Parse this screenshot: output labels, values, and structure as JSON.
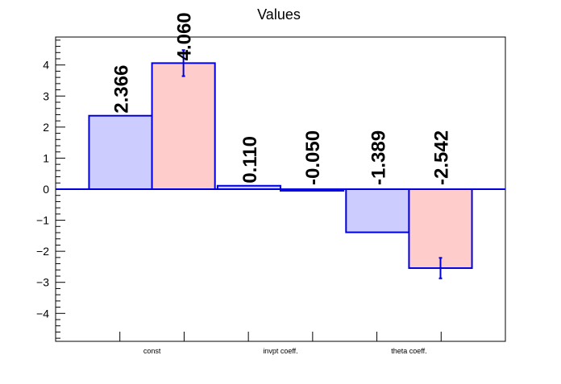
{
  "chart_data": {
    "type": "bar",
    "title": "Values",
    "xlabel": "",
    "ylabel": "",
    "categories": [
      "const",
      "invpt coeff.",
      "theta coeff."
    ],
    "ylim": [
      -4.9,
      4.9
    ],
    "yticks_major": [
      -4,
      -3,
      -2,
      -1,
      0,
      1,
      2,
      3,
      4
    ],
    "ytick_labels": [
      "−4",
      "−3",
      "−2",
      "−1",
      "0",
      "1",
      "2",
      "3",
      "4"
    ],
    "grid": false,
    "legend": false,
    "series": [
      {
        "values": [
          2.366,
          0.11,
          -1.389
        ],
        "labels": [
          "2.366",
          "0.110",
          "-1.389"
        ],
        "fill": "#ccccff",
        "stroke": "#0000dd",
        "errors": [
          0.0,
          0.0,
          0.0
        ]
      },
      {
        "values": [
          4.06,
          -0.05,
          -2.542
        ],
        "labels": [
          "4.060",
          "-0.050",
          "-2.542"
        ],
        "fill": "#ffcccc",
        "stroke": "#0000dd",
        "errors": [
          0.42,
          0.0,
          0.33
        ]
      }
    ]
  }
}
